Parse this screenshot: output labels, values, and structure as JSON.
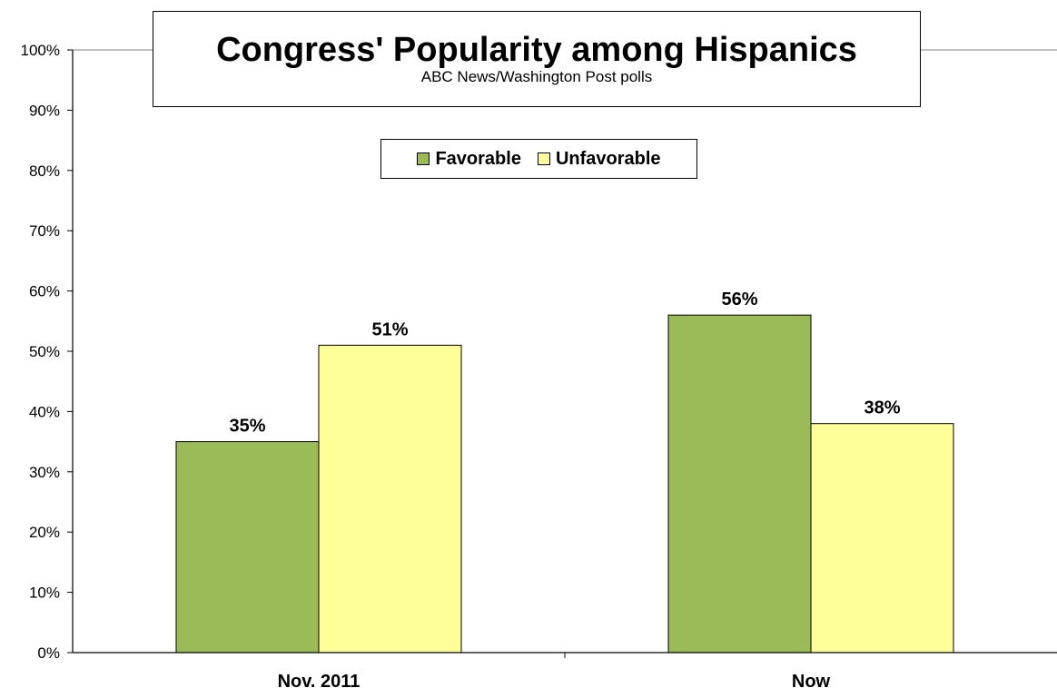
{
  "chart_data": {
    "type": "bar",
    "title": "Congress' Popularity among Hispanics",
    "subtitle": "ABC News/Washington Post polls",
    "categories": [
      "Nov. 2011",
      "Now"
    ],
    "series": [
      {
        "name": "Favorable",
        "values": [
          35,
          56
        ],
        "color": "#9BBB59"
      },
      {
        "name": "Unfavorable",
        "values": [
          51,
          38
        ],
        "color": "#FFFF99"
      }
    ],
    "data_labels": [
      [
        "35%",
        "56%"
      ],
      [
        "51%",
        "38%"
      ]
    ],
    "ylim": [
      0,
      100
    ],
    "yticks": [
      0,
      10,
      20,
      30,
      40,
      50,
      60,
      70,
      80,
      90,
      100
    ],
    "ytick_labels": [
      "0%",
      "10%",
      "20%",
      "30%",
      "40%",
      "50%",
      "60%",
      "70%",
      "80%",
      "90%",
      "100%"
    ],
    "xlabel": "",
    "ylabel": "",
    "grid": false,
    "legend_position": "top-center"
  }
}
